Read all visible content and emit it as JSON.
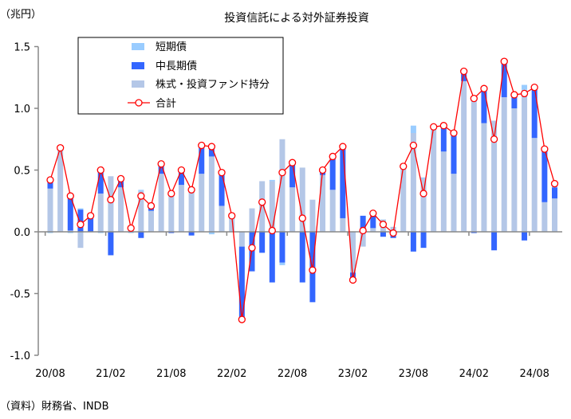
{
  "chart_data": {
    "type": "bar",
    "title": "投資信託による対外証券投資",
    "unit_label": "（兆円）",
    "source": "（資料）財務省、INDB",
    "ylim": [
      -1.0,
      1.5
    ],
    "yticks": [
      "1.5",
      "1.0",
      "0.5",
      "0.0",
      "-0.5",
      "-1.0"
    ],
    "ytick_values": [
      1.5,
      1.0,
      0.5,
      0.0,
      -0.5,
      -1.0
    ],
    "xtick_labels": [
      "20/08",
      "21/02",
      "21/08",
      "22/02",
      "22/08",
      "23/02",
      "23/08",
      "24/02",
      "24/08"
    ],
    "xtick_indices": [
      0,
      6,
      12,
      18,
      24,
      30,
      36,
      42,
      48
    ],
    "legend": [
      "短期債",
      "中長期債",
      "株式・投資ファンド持分",
      "合計"
    ],
    "colors": {
      "short": "#99ccff",
      "midlong": "#3366ff",
      "stock": "#b4c7e7",
      "total": "#ff0000"
    },
    "x": [
      "20/08",
      "20/09",
      "20/10",
      "20/11",
      "20/12",
      "21/01",
      "21/02",
      "21/03",
      "21/04",
      "21/05",
      "21/06",
      "21/07",
      "21/08",
      "21/09",
      "21/10",
      "21/11",
      "21/12",
      "22/01",
      "22/02",
      "22/03",
      "22/04",
      "22/05",
      "22/06",
      "22/07",
      "22/08",
      "22/09",
      "22/10",
      "22/11",
      "22/12",
      "23/01",
      "23/02",
      "23/03",
      "23/04",
      "23/05",
      "23/06",
      "23/07",
      "23/08",
      "23/09",
      "23/10",
      "23/11",
      "23/12",
      "24/01",
      "24/02",
      "24/03",
      "24/04",
      "24/05",
      "24/06",
      "24/07",
      "24/08",
      "24/09",
      "24/10"
    ],
    "series": [
      {
        "name": "株式・投資ファンド持分",
        "values": [
          0.35,
          0.66,
          0.01,
          -0.13,
          0.0,
          0.31,
          0.45,
          0.36,
          0.04,
          0.33,
          0.17,
          0.47,
          0.31,
          0.38,
          0.34,
          0.47,
          0.61,
          0.21,
          0.11,
          -0.12,
          0.19,
          0.41,
          0.41,
          0.75,
          0.36,
          0.52,
          0.26,
          0.46,
          0.34,
          0.11,
          -0.33,
          -0.12,
          0.03,
          0.1,
          0.04,
          0.51,
          0.8,
          0.43,
          0.84,
          0.65,
          0.47,
          1.22,
          1.05,
          0.88,
          0.9,
          1.09,
          1.0,
          1.15,
          0.76,
          0.24,
          0.27
        ]
      },
      {
        "name": "中長期債",
        "values": [
          0.07,
          0.02,
          0.28,
          0.18,
          0.13,
          0.19,
          -0.19,
          0.07,
          0.0,
          -0.05,
          0.04,
          0.08,
          -0.01,
          0.12,
          -0.03,
          0.23,
          0.08,
          0.27,
          0.02,
          -0.59,
          -0.32,
          -0.17,
          -0.41,
          -0.25,
          0.2,
          -0.41,
          -0.57,
          0.04,
          0.27,
          0.58,
          -0.06,
          0.13,
          0.12,
          -0.04,
          -0.05,
          0.02,
          -0.16,
          -0.13,
          0.01,
          0.21,
          0.33,
          0.08,
          -0.01,
          0.28,
          -0.15,
          0.29,
          0.11,
          -0.07,
          0.41,
          0.43,
          0.09
        ]
      },
      {
        "name": "短期債",
        "values": [
          -0.01,
          0.0,
          -0.01,
          0.01,
          0.0,
          -0.01,
          0.0,
          0.0,
          -0.01,
          0.01,
          0.0,
          0.0,
          0.01,
          0.0,
          0.02,
          0.0,
          -0.02,
          0.0,
          0.0,
          0.0,
          0.0,
          0.0,
          0.01,
          -0.02,
          0.0,
          0.0,
          0.0,
          0.0,
          0.0,
          0.0,
          0.0,
          0.0,
          0.0,
          0.0,
          0.0,
          0.0,
          0.06,
          0.01,
          0.0,
          0.0,
          0.0,
          0.0,
          0.04,
          0.0,
          0.0,
          0.0,
          0.0,
          0.04,
          0.0,
          0.0,
          0.03
        ]
      },
      {
        "name": "合計",
        "values": [
          0.42,
          0.68,
          0.29,
          0.06,
          0.13,
          0.5,
          0.26,
          0.43,
          0.03,
          0.29,
          0.21,
          0.55,
          0.31,
          0.5,
          0.34,
          0.7,
          0.69,
          0.48,
          0.13,
          -0.71,
          -0.13,
          0.24,
          0.01,
          0.48,
          0.56,
          0.11,
          -0.31,
          0.5,
          0.61,
          0.69,
          -0.39,
          0.01,
          0.15,
          0.06,
          -0.01,
          0.53,
          0.7,
          0.31,
          0.85,
          0.86,
          0.8,
          1.3,
          1.08,
          1.16,
          0.75,
          1.38,
          1.11,
          1.12,
          1.17,
          0.67,
          0.39
        ]
      }
    ]
  }
}
